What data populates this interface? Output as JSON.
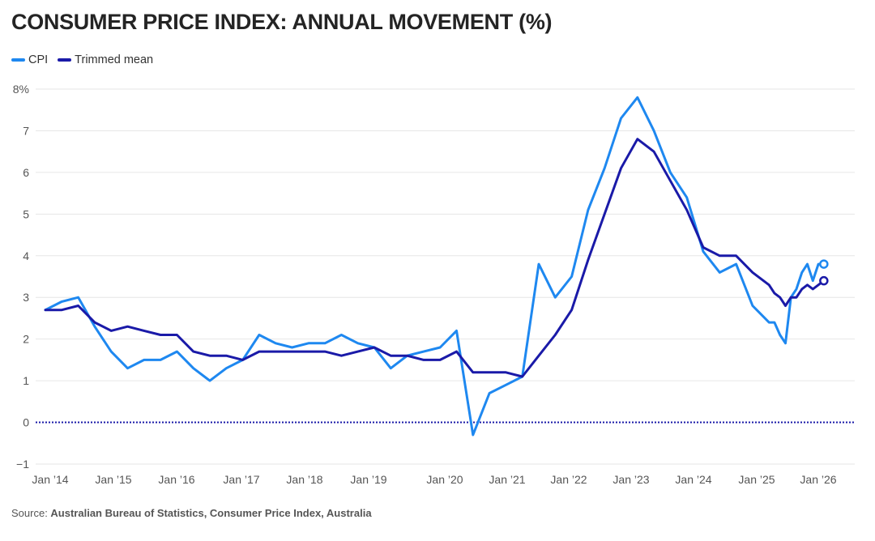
{
  "chart_data": {
    "type": "line",
    "title": "CONSUMER PRICE INDEX: ANNUAL MOVEMENT (%)",
    "xlabel": "",
    "ylabel": "",
    "ylim": [
      -1,
      8
    ],
    "yticks": [
      -1,
      0,
      1,
      2,
      3,
      4,
      5,
      6,
      7,
      8
    ],
    "ytick_labels": [
      "−1",
      "0",
      "1",
      "2",
      "3",
      "4",
      "5",
      "6",
      "7",
      "8%"
    ],
    "xlim": [
      "Oct 2013",
      "Jan 2026"
    ],
    "xtick_labels": [
      "Jan ’14",
      "Jan ’15",
      "Jan ’16",
      "Jan ’17",
      "Jan ’18",
      "Jan ’19",
      "Jan ’20",
      "Jan ’21",
      "Jan ’22",
      "Jan ’23",
      "Jan ’24",
      "Jan ’25",
      "Jan ’26"
    ],
    "grid": true,
    "zero_line": "dotted",
    "legend_position": "top-left",
    "x": [
      "Dec 2013",
      "Mar 2014",
      "Jun 2014",
      "Sep 2014",
      "Dec 2014",
      "Mar 2015",
      "Jun 2015",
      "Sep 2015",
      "Dec 2015",
      "Mar 2016",
      "Jun 2016",
      "Sep 2016",
      "Dec 2016",
      "Mar 2017",
      "Jun 2017",
      "Sep 2017",
      "Dec 2017",
      "Mar 2018",
      "Jun 2018",
      "Sep 2018",
      "Dec 2018",
      "Mar 2019",
      "Jun 2019",
      "Sep 2019",
      "Dec 2019",
      "Mar 2020",
      "Jun 2020",
      "Sep 2020",
      "Dec 2020",
      "Mar 2021",
      "Jun 2021",
      "Sep 2021",
      "Dec 2021",
      "Mar 2022",
      "Jun 2022",
      "Sep 2022",
      "Dec 2022",
      "Mar 2023",
      "Jun 2023",
      "Sep 2023",
      "Dec 2023",
      "Mar 2024",
      "Jun 2024",
      "Sep 2024",
      "Dec 2024",
      "Jan 2025",
      "Feb 2025",
      "Mar 2025",
      "Apr 2025",
      "May 2025",
      "Jun 2025",
      "Jul 2025",
      "Aug 2025",
      "Sep 2025",
      "Oct 2025"
    ],
    "x_years": [
      2013.917,
      2014.167,
      2014.417,
      2014.667,
      2014.917,
      2015.167,
      2015.417,
      2015.667,
      2015.917,
      2016.167,
      2016.417,
      2016.667,
      2016.917,
      2017.167,
      2017.417,
      2017.667,
      2017.917,
      2018.167,
      2018.417,
      2018.667,
      2018.917,
      2019.167,
      2019.417,
      2019.667,
      2019.917,
      2020.167,
      2020.417,
      2020.667,
      2020.917,
      2021.167,
      2021.417,
      2021.667,
      2021.917,
      2022.167,
      2022.417,
      2022.667,
      2022.917,
      2023.167,
      2023.417,
      2023.667,
      2023.917,
      2024.167,
      2024.417,
      2024.667,
      2024.917,
      2025.0,
      2025.083,
      2025.167,
      2025.25,
      2025.333,
      2025.417,
      2025.5,
      2025.583,
      2025.667,
      2025.75
    ],
    "series": [
      {
        "name": "CPI",
        "color": "#1e88f0",
        "end_marker": "open-circle",
        "values": [
          2.7,
          2.9,
          3.0,
          2.3,
          1.7,
          1.3,
          1.5,
          1.5,
          1.7,
          1.3,
          1.0,
          1.3,
          1.5,
          2.1,
          1.9,
          1.8,
          1.9,
          1.9,
          2.1,
          1.9,
          1.8,
          1.3,
          1.6,
          1.7,
          1.8,
          2.2,
          -0.3,
          0.7,
          0.9,
          1.1,
          3.8,
          3.0,
          3.5,
          5.1,
          6.1,
          7.3,
          7.8,
          7.0,
          6.0,
          5.4,
          4.1,
          3.6,
          3.8,
          2.8,
          2.4,
          2.4,
          2.1,
          1.9,
          3.0,
          3.2,
          3.6,
          3.8,
          3.4,
          3.8,
          3.8
        ]
      },
      {
        "name": "Trimmed mean",
        "color": "#1a1aa8",
        "end_marker": "open-circle",
        "values": [
          2.7,
          2.7,
          2.8,
          2.4,
          2.2,
          2.3,
          2.2,
          2.1,
          2.1,
          1.7,
          1.6,
          1.6,
          1.5,
          1.7,
          1.7,
          1.7,
          1.7,
          1.7,
          1.6,
          1.7,
          1.8,
          1.6,
          1.6,
          1.5,
          1.5,
          1.7,
          1.2,
          1.2,
          1.2,
          1.1,
          1.6,
          2.1,
          2.7,
          3.9,
          5.0,
          6.1,
          6.8,
          6.5,
          5.8,
          5.1,
          4.2,
          4.0,
          4.0,
          3.6,
          3.3,
          3.1,
          3.0,
          2.8,
          3.0,
          3.0,
          3.2,
          3.3,
          3.2,
          3.3,
          3.4
        ]
      }
    ]
  },
  "legend": [
    {
      "label": "CPI",
      "color": "#1e88f0"
    },
    {
      "label": "Trimmed mean",
      "color": "#1a1aa8"
    }
  ],
  "source": {
    "prefix": "Source: ",
    "text": "Australian Bureau of Statistics, Consumer Price Index, Australia"
  }
}
